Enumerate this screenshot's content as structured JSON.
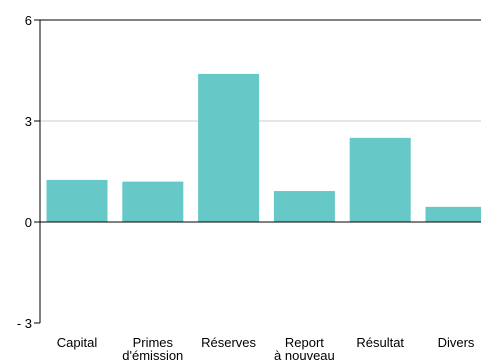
{
  "chart_data": {
    "type": "bar",
    "categories": [
      [
        "Capital"
      ],
      [
        "Primes",
        "d'émission"
      ],
      [
        "Réserves"
      ],
      [
        "Report",
        "à nouveau"
      ],
      [
        "Résultat"
      ],
      [
        "Divers"
      ]
    ],
    "values": [
      1.25,
      1.2,
      4.4,
      0.92,
      2.5,
      0.45
    ],
    "ylim": [
      -3,
      6
    ],
    "yticks": [
      6,
      3,
      0,
      -3
    ],
    "ytick_labels": [
      "6",
      "3",
      "0",
      "- 3"
    ],
    "grid": true,
    "bar_color": "#66c9c7",
    "gridline_color": "#cccccc"
  }
}
